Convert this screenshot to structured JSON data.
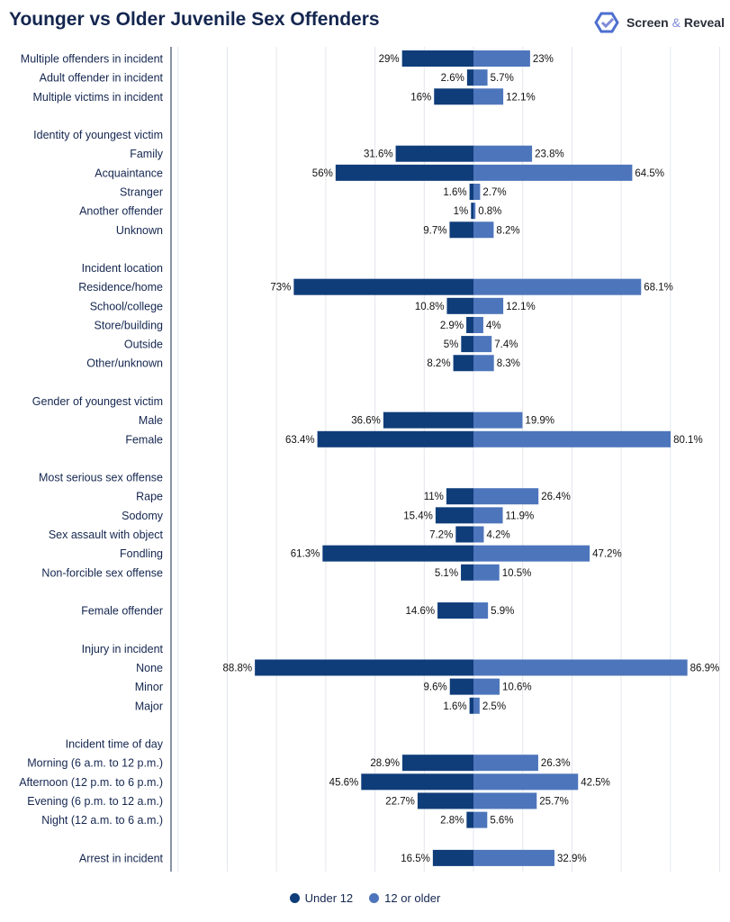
{
  "title": "Younger vs Older Juvenile Sex Offenders",
  "logo": {
    "part1": "Screen",
    "amp": "&",
    "part2": "Reveal"
  },
  "colors": {
    "under12": "#0f3d7a",
    "older": "#4d75bb",
    "title": "#14264f",
    "grid": "#e3e6ec"
  },
  "chart_data": {
    "type": "bar",
    "orientation": "horizontal-diverging",
    "xlim": [
      -120,
      100
    ],
    "grid": true,
    "legend_position": "bottom",
    "series": [
      {
        "name": "Under 12",
        "color": "#0f3d7a"
      },
      {
        "name": "12 or older",
        "color": "#4d75bb"
      }
    ],
    "rows": [
      {
        "label": "Multiple offenders in incident",
        "under12": 29,
        "u_label": "29%",
        "older": 23,
        "o_label": "23%"
      },
      {
        "label": "Adult offender in incident",
        "under12": 2.6,
        "u_label": "2.6%",
        "older": 5.7,
        "o_label": "5.7%"
      },
      {
        "label": "Multiple victims in incident",
        "under12": 16,
        "u_label": "16%",
        "older": 12.1,
        "o_label": "12.1%"
      },
      {
        "gap": true
      },
      {
        "label": "Identity of youngest victim",
        "header": true
      },
      {
        "label": "Family",
        "under12": 31.6,
        "u_label": "31.6%",
        "older": 23.8,
        "o_label": "23.8%"
      },
      {
        "label": "Acquaintance",
        "under12": 56,
        "u_label": "56%",
        "older": 64.5,
        "o_label": "64.5%"
      },
      {
        "label": "Stranger",
        "under12": 1.6,
        "u_label": "1.6%",
        "older": 2.7,
        "o_label": "2.7%"
      },
      {
        "label": "Another offender",
        "under12": 1,
        "u_label": "1%",
        "older": 0.8,
        "o_label": "0.8%"
      },
      {
        "label": "Unknown",
        "under12": 9.7,
        "u_label": "9.7%",
        "older": 8.2,
        "o_label": "8.2%"
      },
      {
        "gap": true
      },
      {
        "label": "Incident location",
        "header": true
      },
      {
        "label": "Residence/home",
        "under12": 73,
        "u_label": "73%",
        "older": 68.1,
        "o_label": "68.1%"
      },
      {
        "label": "School/college",
        "under12": 10.8,
        "u_label": "10.8%",
        "older": 12.1,
        "o_label": "12.1%"
      },
      {
        "label": "Store/building",
        "under12": 2.9,
        "u_label": "2.9%",
        "older": 4,
        "o_label": "4%"
      },
      {
        "label": "Outside",
        "under12": 5,
        "u_label": "5%",
        "older": 7.4,
        "o_label": "7.4%"
      },
      {
        "label": "Other/unknown",
        "under12": 8.2,
        "u_label": "8.2%",
        "older": 8.3,
        "o_label": "8.3%"
      },
      {
        "gap": true
      },
      {
        "label": "Gender of youngest victim",
        "header": true
      },
      {
        "label": "Male",
        "under12": 36.6,
        "u_label": "36.6%",
        "older": 19.9,
        "o_label": "19.9%"
      },
      {
        "label": "Female",
        "under12": 63.4,
        "u_label": "63.4%",
        "older": 80.1,
        "o_label": "80.1%"
      },
      {
        "gap": true
      },
      {
        "label": "Most serious sex offense",
        "header": true
      },
      {
        "label": "Rape",
        "under12": 11,
        "u_label": "11%",
        "older": 26.4,
        "o_label": "26.4%"
      },
      {
        "label": "Sodomy",
        "under12": 15.4,
        "u_label": "15.4%",
        "older": 11.9,
        "o_label": "11.9%"
      },
      {
        "label": "Sex assault with object",
        "under12": 7.2,
        "u_label": "7.2%",
        "older": 4.2,
        "o_label": "4.2%"
      },
      {
        "label": "Fondling",
        "under12": 61.3,
        "u_label": "61.3%",
        "older": 47.2,
        "o_label": "47.2%"
      },
      {
        "label": "Non-forcible sex offense",
        "under12": 5.1,
        "u_label": "5.1%",
        "older": 10.5,
        "o_label": "10.5%"
      },
      {
        "gap": true
      },
      {
        "label": "Female offender",
        "under12": 14.6,
        "u_label": "14.6%",
        "older": 5.9,
        "o_label": "5.9%"
      },
      {
        "gap": true
      },
      {
        "label": "Injury in incident",
        "header": true
      },
      {
        "label": "None",
        "under12": 88.8,
        "u_label": "88.8%",
        "older": 86.9,
        "o_label": "86.9%"
      },
      {
        "label": "Minor",
        "under12": 9.6,
        "u_label": "9.6%",
        "older": 10.6,
        "o_label": "10.6%"
      },
      {
        "label": "Major",
        "under12": 1.6,
        "u_label": "1.6%",
        "older": 2.5,
        "o_label": "2.5%"
      },
      {
        "gap": true
      },
      {
        "label": "Incident time of day",
        "header": true
      },
      {
        "label": "Morning (6 a.m. to 12 p.m.)",
        "under12": 28.9,
        "u_label": "28.9%",
        "older": 26.3,
        "o_label": "26.3%"
      },
      {
        "label": "Afternoon (12 p.m. to 6 p.m.)",
        "under12": 45.6,
        "u_label": "45.6%",
        "older": 42.5,
        "o_label": "42.5%"
      },
      {
        "label": "Evening (6 p.m. to 12 a.m.)",
        "under12": 22.7,
        "u_label": "22.7%",
        "older": 25.7,
        "o_label": "25.7%"
      },
      {
        "label": "Night (12 a.m. to 6 a.m.)",
        "under12": 2.8,
        "u_label": "2.8%",
        "older": 5.6,
        "o_label": "5.6%"
      },
      {
        "gap": true
      },
      {
        "label": "Arrest in incident",
        "under12": 16.5,
        "u_label": "16.5%",
        "older": 32.9,
        "o_label": "32.9%"
      }
    ]
  }
}
